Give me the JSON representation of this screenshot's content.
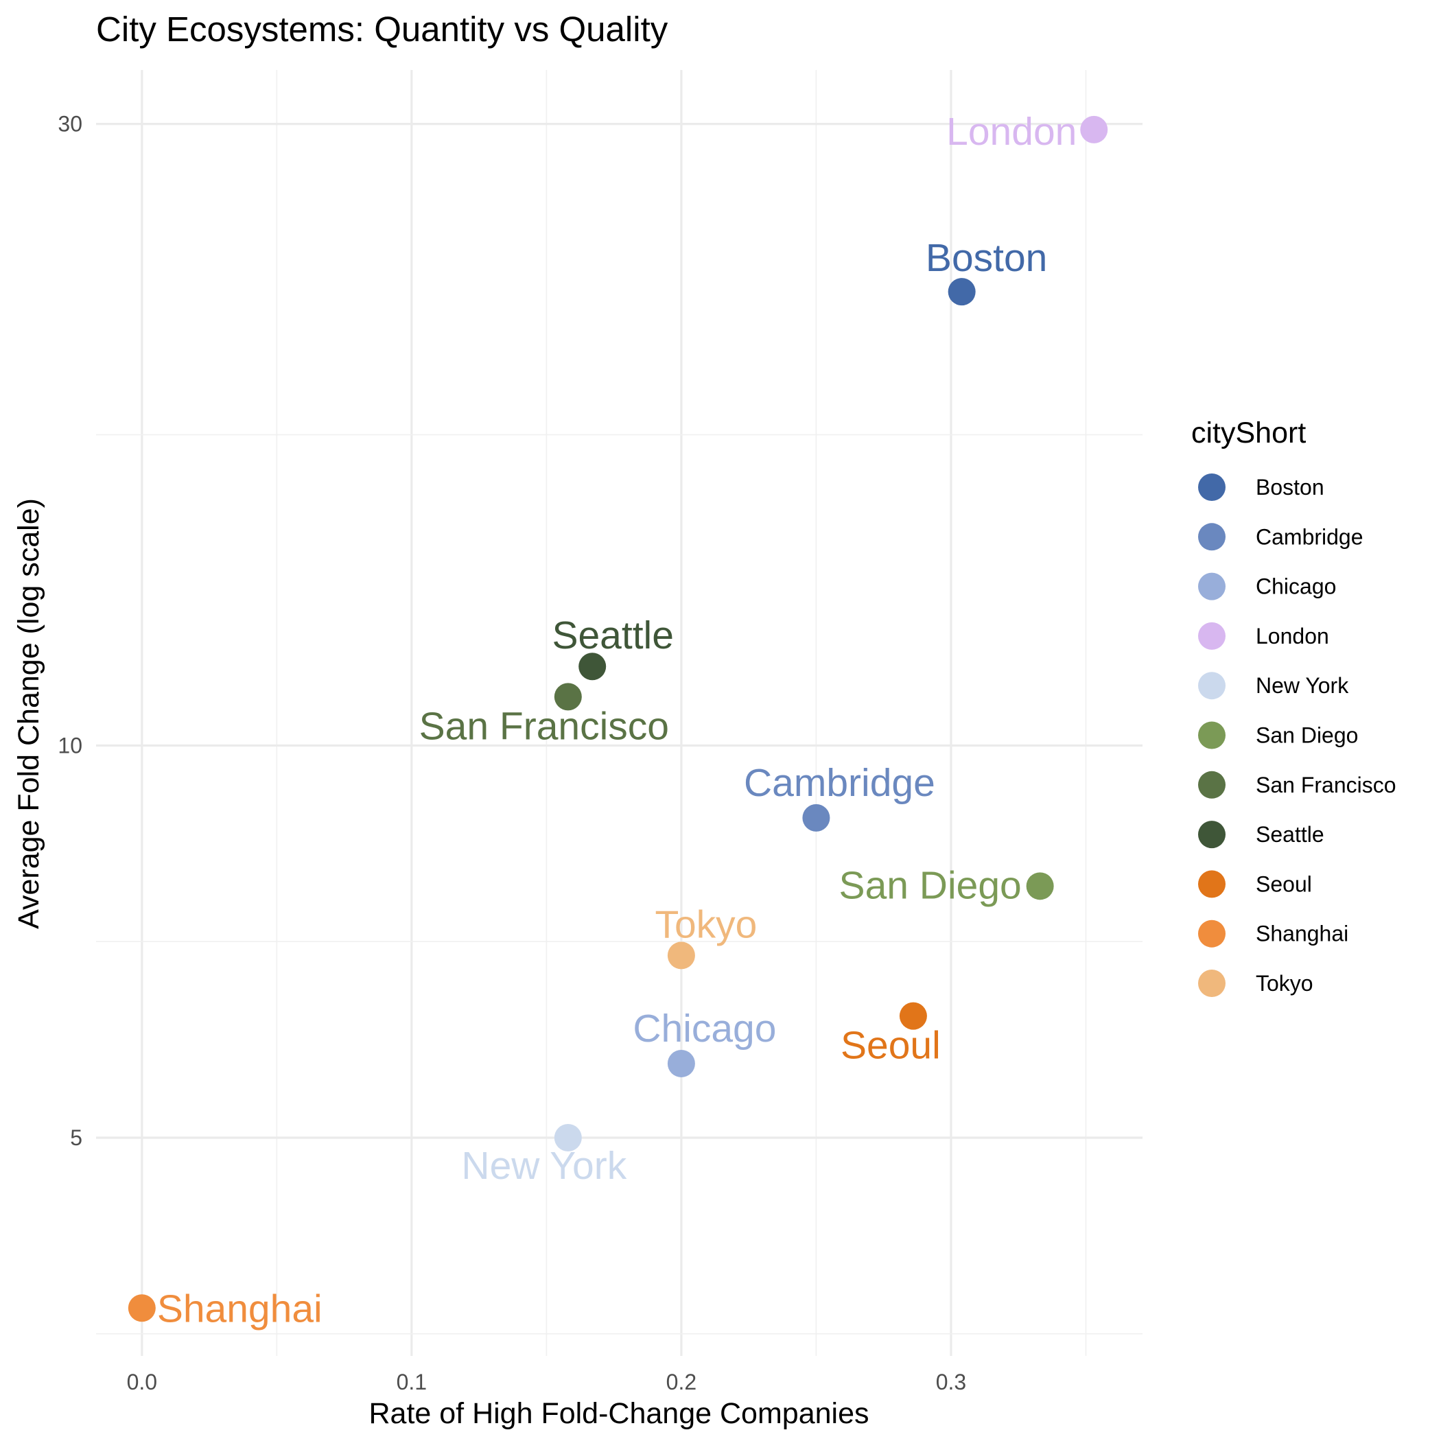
{
  "chart_data": {
    "type": "scatter",
    "title": "City Ecosystems: Quantity vs Quality",
    "xlabel": "Rate of High Fold-Change Companies",
    "ylabel": "Average Fold Change (log scale)",
    "x_ticks": [
      "0.0",
      "0.1",
      "0.2",
      "0.3"
    ],
    "y_ticks": [
      "5",
      "10",
      "30"
    ],
    "xlim": [
      -0.017,
      0.371
    ],
    "ylim": [
      3.4,
      33
    ],
    "y_scale": "log10",
    "grid": true,
    "legend": {
      "title": "cityShort",
      "position": "right"
    },
    "points": [
      {
        "city": "Boston",
        "x": 0.304,
        "y": 22.3,
        "color": "#4269A8"
      },
      {
        "city": "Cambridge",
        "x": 0.25,
        "y": 8.8,
        "color": "#6A88BF"
      },
      {
        "city": "Chicago",
        "x": 0.2,
        "y": 5.7,
        "color": "#98AEDA"
      },
      {
        "city": "London",
        "x": 0.353,
        "y": 29.7,
        "color": "#D8B7F0"
      },
      {
        "city": "New York",
        "x": 0.158,
        "y": 5.0,
        "color": "#CBD9ED"
      },
      {
        "city": "San Diego",
        "x": 0.333,
        "y": 7.8,
        "color": "#7B9A56"
      },
      {
        "city": "San Francisco",
        "x": 0.158,
        "y": 10.9,
        "color": "#5A7345"
      },
      {
        "city": "Seattle",
        "x": 0.167,
        "y": 11.5,
        "color": "#3F5638"
      },
      {
        "city": "Seoul",
        "x": 0.286,
        "y": 6.2,
        "color": "#E17519"
      },
      {
        "city": "Shanghai",
        "x": 0.0,
        "y": 3.7,
        "color": "#F08D3D"
      },
      {
        "city": "Tokyo",
        "x": 0.2,
        "y": 6.9,
        "color": "#F0B87C"
      }
    ]
  }
}
